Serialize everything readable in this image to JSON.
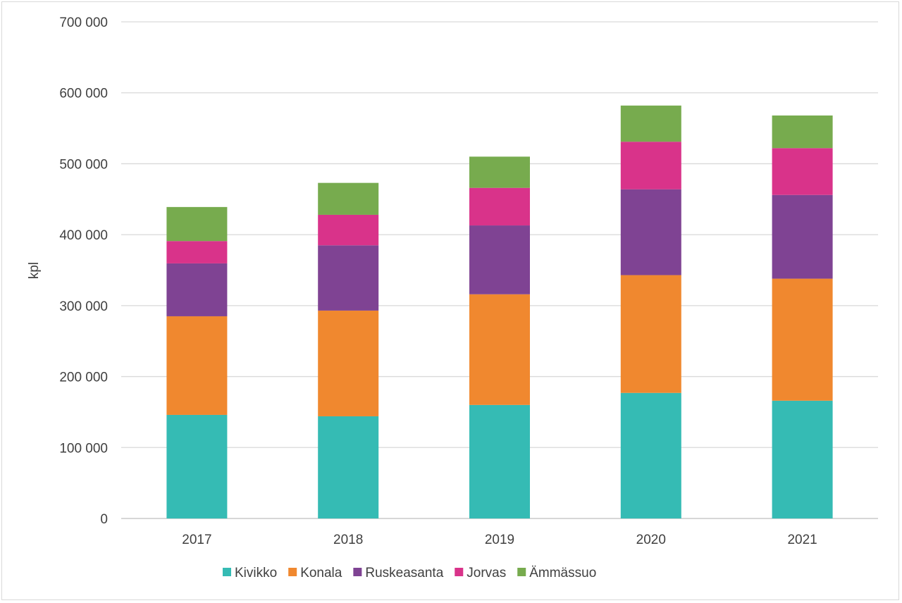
{
  "chart_data": {
    "type": "bar",
    "stacked": true,
    "title": "",
    "xlabel": "",
    "ylabel": "kpl",
    "ylim": [
      0,
      700000
    ],
    "yticks": [
      0,
      100000,
      200000,
      300000,
      400000,
      500000,
      600000,
      700000
    ],
    "ytick_labels": [
      "0",
      "100 000",
      "200 000",
      "300 000",
      "400 000",
      "500 000",
      "600 000",
      "700 000"
    ],
    "grid": true,
    "legend_position": "bottom",
    "categories": [
      "2017",
      "2018",
      "2019",
      "2020",
      "2021"
    ],
    "series": [
      {
        "name": "Kivikko",
        "color": "#35bbb4",
        "values": [
          146000,
          144000,
          160000,
          177000,
          166000
        ]
      },
      {
        "name": "Konala",
        "color": "#f0882f",
        "values": [
          139000,
          149000,
          156000,
          166000,
          172000
        ]
      },
      {
        "name": "Ruskeasanta",
        "color": "#7f4393",
        "values": [
          74500,
          92000,
          97000,
          121000,
          118000
        ]
      },
      {
        "name": "Jorvas",
        "color": "#d9338a",
        "values": [
          31500,
          43000,
          53000,
          67000,
          66000
        ]
      },
      {
        "name": "Ämmässuo",
        "color": "#77ab4e",
        "values": [
          48000,
          45000,
          44000,
          51000,
          46000
        ]
      }
    ]
  }
}
